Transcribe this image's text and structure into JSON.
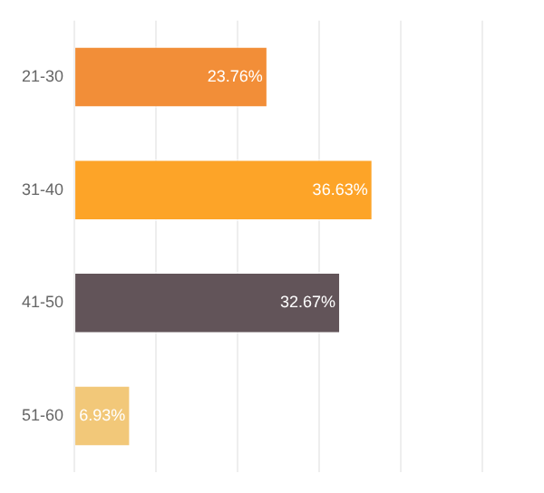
{
  "chart_data": {
    "type": "bar",
    "orientation": "horizontal",
    "categories": [
      "21-30",
      "31-40",
      "41-50",
      "51-60"
    ],
    "values": [
      23.76,
      36.63,
      32.67,
      6.93
    ],
    "colors": [
      "#f28e38",
      "#fda428",
      "#625459",
      "#f2c879"
    ],
    "value_labels": [
      "23.76%",
      "36.63%",
      "32.67%",
      "6.93%"
    ],
    "xlim": [
      0,
      50
    ],
    "xticks": [
      {
        "value": 0,
        "label": null
      },
      {
        "value": 10,
        "label": null
      },
      {
        "value": 20,
        "label": null
      },
      {
        "value": 30,
        "label": null
      },
      {
        "value": 40,
        "label": null
      },
      {
        "value": 50,
        "label": null
      }
    ],
    "tick_labels": "y",
    "grid": "x"
  }
}
